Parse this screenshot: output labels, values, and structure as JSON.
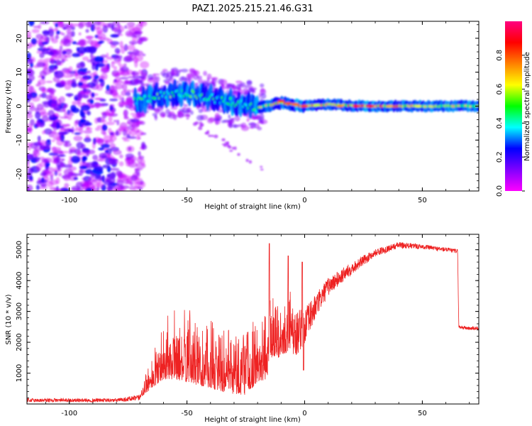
{
  "title": "PAZ1.2025.215.21.46.G31",
  "chart_data": [
    {
      "type": "heatmap",
      "xlabel": "Height of straight line (km)",
      "ylabel": "Frequency (Hz)",
      "xlim": [
        -118,
        74
      ],
      "ylim": [
        -25,
        25
      ],
      "xticks": [
        -100,
        -50,
        0,
        50
      ],
      "yticks": [
        -20,
        -10,
        0,
        10,
        20
      ],
      "colorbar": {
        "label": "Normalized spectral amplitude",
        "range": [
          0,
          1
        ],
        "ticks": [
          "0.0",
          "0.2",
          "0.4",
          "0.6",
          "0.8"
        ],
        "tick_values": [
          0.0,
          0.2,
          0.4,
          0.6,
          0.8
        ],
        "colormap": [
          "#ff00ff",
          "#8000ff",
          "#0000ff",
          "#00ffff",
          "#00ff00",
          "#ffff00",
          "#ff8000",
          "#ff0000",
          "#ff0080"
        ]
      },
      "features": {
        "noise_region_km": [
          -118,
          -70
        ],
        "signal_band": [
          {
            "x": -70,
            "freq": 1.5,
            "amp": 0.45
          },
          {
            "x": -60,
            "freq": 3.5,
            "amp": 0.5
          },
          {
            "x": -50,
            "freq": 4.0,
            "amp": 0.5
          },
          {
            "x": -40,
            "freq": 2.5,
            "amp": 0.45
          },
          {
            "x": -30,
            "freq": 1.0,
            "amp": 0.45
          },
          {
            "x": -20,
            "freq": -0.5,
            "amp": 0.5
          },
          {
            "x": -10,
            "freq": 1.0,
            "amp": 0.7
          },
          {
            "x": 0,
            "freq": 0.0,
            "amp": 0.75
          },
          {
            "x": 10,
            "freq": 0.5,
            "amp": 0.6
          },
          {
            "x": 25,
            "freq": 0.0,
            "amp": 0.85
          },
          {
            "x": 40,
            "freq": 0.0,
            "amp": 0.65
          },
          {
            "x": 55,
            "freq": 0.0,
            "amp": 0.6
          },
          {
            "x": 74,
            "freq": 0.0,
            "amp": 0.55
          }
        ],
        "peak_color_hint": "#ff0000"
      }
    },
    {
      "type": "line",
      "xlabel": "Height of straight line (km)",
      "ylabel": "SNR (10 * v/v)",
      "xlim": [
        -118,
        74
      ],
      "ylim": [
        0,
        5500
      ],
      "xticks": [
        -100,
        -50,
        0,
        50
      ],
      "yticks": [
        1000,
        2000,
        3000,
        4000,
        5000
      ],
      "color": "#ee2222",
      "envelope": {
        "x": [
          -118,
          -80,
          -70,
          -65,
          -60,
          -55,
          -50,
          -45,
          -40,
          -35,
          -30,
          -25,
          -20,
          -16,
          -15,
          -10,
          -6,
          -5,
          0,
          5,
          10,
          20,
          30,
          40,
          50,
          60,
          65,
          65.5,
          70,
          74
        ],
        "base": [
          120,
          120,
          200,
          500,
          800,
          800,
          700,
          600,
          500,
          400,
          300,
          300,
          700,
          800,
          1500,
          1500,
          1800,
          2200,
          2500,
          3200,
          3800,
          4400,
          4900,
          5150,
          5100,
          5000,
          4950,
          2500,
          2450,
          2450
        ],
        "amp": [
          60,
          60,
          100,
          700,
          1200,
          1500,
          1500,
          1400,
          1400,
          1300,
          1300,
          1400,
          1400,
          1300,
          1700,
          1200,
          1300,
          800,
          600,
          400,
          300,
          200,
          120,
          100,
          80,
          70,
          70,
          60,
          60,
          60
        ]
      }
    }
  ]
}
